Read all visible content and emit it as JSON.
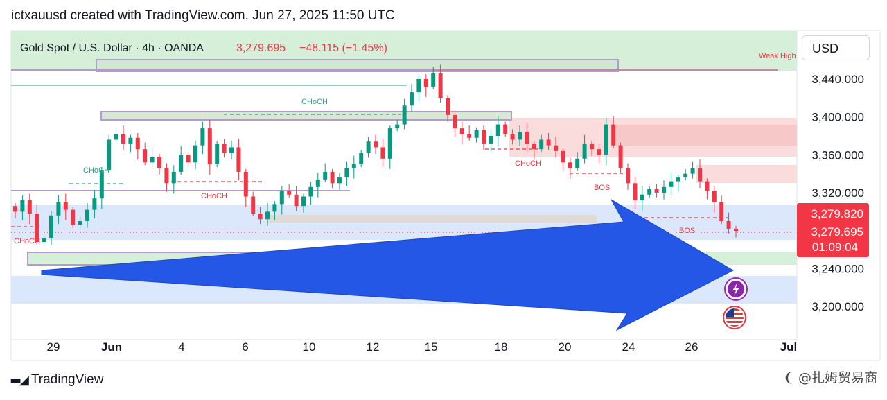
{
  "header": {
    "caption": "ictxauusd created with TradingView.com, Jun 27, 2025 11:50 UTC"
  },
  "legend": {
    "symbol": "Gold Spot / U.S. Dollar · 4h · OANDA",
    "price": "3,279.695",
    "change": "−48.115 (−1.45%)"
  },
  "currency_button": "USD",
  "price_labels": {
    "upper": "3,279.820",
    "lower": "3,279.695",
    "countdown": "01:09:04"
  },
  "footer": {
    "brand": "TradingView",
    "watermark": "❨ @扎姆贸易商"
  },
  "chart_data": {
    "type": "candlestick",
    "symbol": "XAUUSD",
    "timeframe": "4h",
    "y_ticks": [
      3440,
      3400,
      3360,
      3320,
      3240,
      3200
    ],
    "y_tick_labels": [
      "3,440.000",
      "3,400.000",
      "3,360.000",
      "3,320.000",
      "3,240.000",
      "3,200.000"
    ],
    "ylim": [
      3160,
      3490
    ],
    "x_ticks": [
      "29",
      "Jun",
      "4",
      "6",
      "10",
      "12",
      "15",
      "18",
      "20",
      "24",
      "26",
      "Jul"
    ],
    "annotations": [
      "CHoCH",
      "CHoCH",
      "CHoCH",
      "CHoCH",
      "CHoCH",
      "BOS",
      "BOS",
      "Weak High"
    ],
    "colors": {
      "up": "#089981",
      "down": "#f23645",
      "arrow": "#2457e6",
      "demand_zone": "#dbe7fb",
      "supply_zone": "#fbdcdc",
      "green_zone": "#d6efd9"
    },
    "close_series": [
      3300,
      3312,
      3298,
      3268,
      3272,
      3296,
      3310,
      3302,
      3286,
      3290,
      3302,
      3314,
      3344,
      3376,
      3382,
      3372,
      3378,
      3366,
      3352,
      3358,
      3346,
      3330,
      3342,
      3360,
      3352,
      3370,
      3388,
      3350,
      3372,
      3362,
      3368,
      3342,
      3316,
      3298,
      3292,
      3300,
      3308,
      3322,
      3318,
      3306,
      3316,
      3326,
      3334,
      3342,
      3330,
      3336,
      3346,
      3350,
      3362,
      3374,
      3368,
      3356,
      3388,
      3392,
      3412,
      3426,
      3440,
      3432,
      3446,
      3420,
      3402,
      3388,
      3382,
      3378,
      3386,
      3372,
      3380,
      3392,
      3382,
      3376,
      3384,
      3372,
      3366,
      3376,
      3370,
      3364,
      3352,
      3346,
      3356,
      3372,
      3366,
      3360,
      3392,
      3370,
      3346,
      3330,
      3312,
      3318,
      3324,
      3320,
      3326,
      3332,
      3336,
      3340,
      3346,
      3332,
      3322,
      3310,
      3290,
      3282,
      3279.695
    ]
  }
}
